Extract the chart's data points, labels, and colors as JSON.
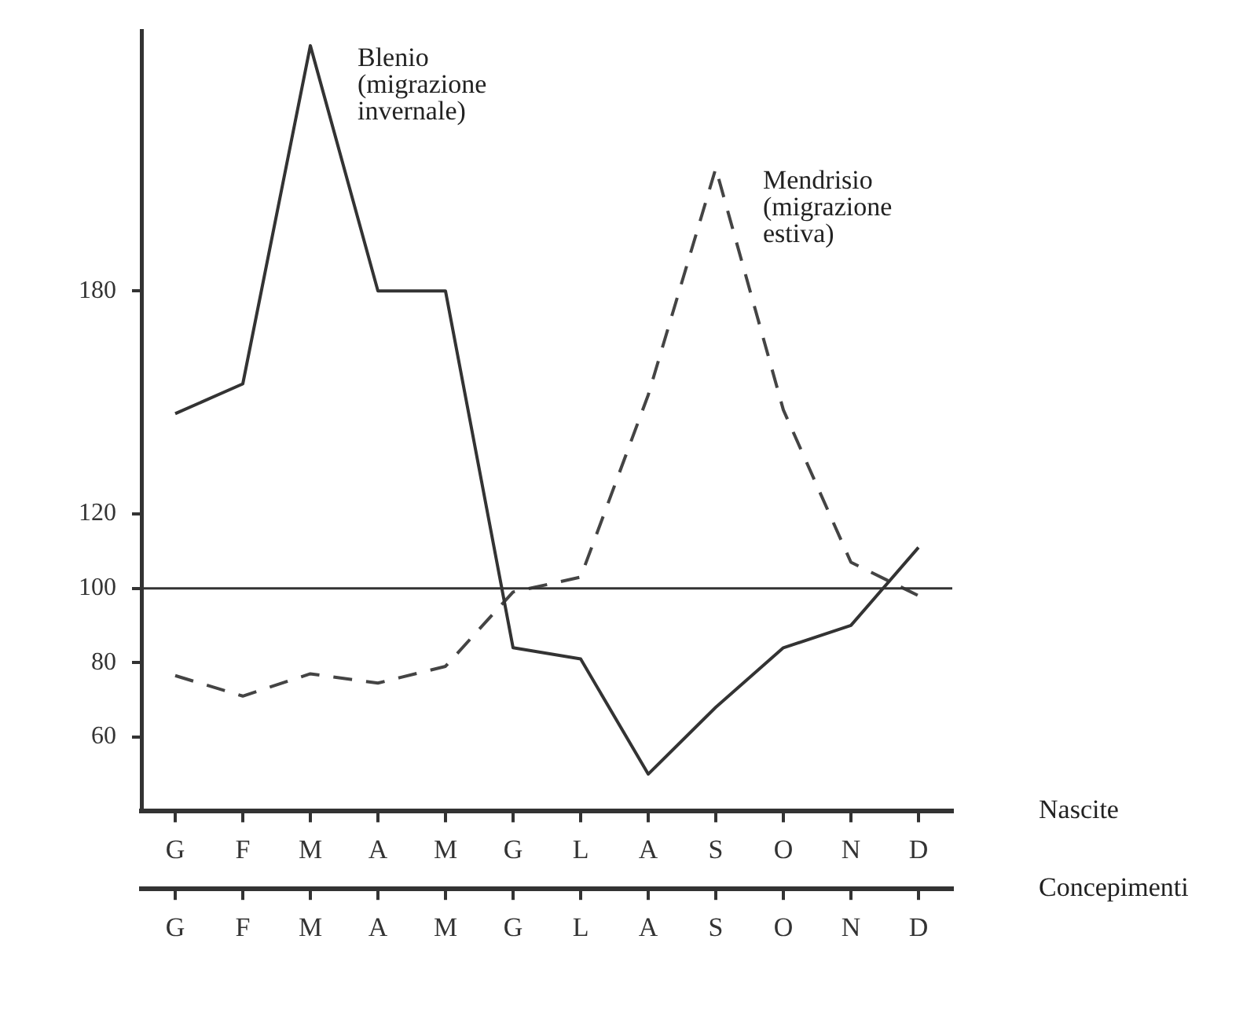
{
  "chart_data": {
    "type": "line",
    "xlabel": "Nascite",
    "x2label": "Concepimenti",
    "categories": [
      "G",
      "F",
      "M",
      "A",
      "M",
      "G",
      "L",
      "A",
      "S",
      "O",
      "N",
      "D"
    ],
    "series": [
      {
        "name": "Blenio (migrazione invernale)",
        "color": "#333333",
        "line_style": "solid",
        "values": [
          147,
          155,
          246,
          180,
          180,
          84,
          81,
          50,
          68,
          84,
          90,
          111
        ]
      },
      {
        "name": "Mendrisio (migrazione estiva)",
        "color": "#444444",
        "line_style": "dashed",
        "values": [
          76.5,
          71,
          77,
          74.5,
          79,
          99,
          103,
          152,
          213,
          148,
          107,
          98
        ]
      }
    ],
    "ylim": [
      40,
      250
    ],
    "yticks": [
      60,
      80,
      100,
      120,
      180
    ],
    "ref_lines": [
      {
        "axis": "y",
        "value": 100,
        "color": "#333333"
      }
    ],
    "grid": false,
    "legend": false,
    "marker": "none"
  }
}
